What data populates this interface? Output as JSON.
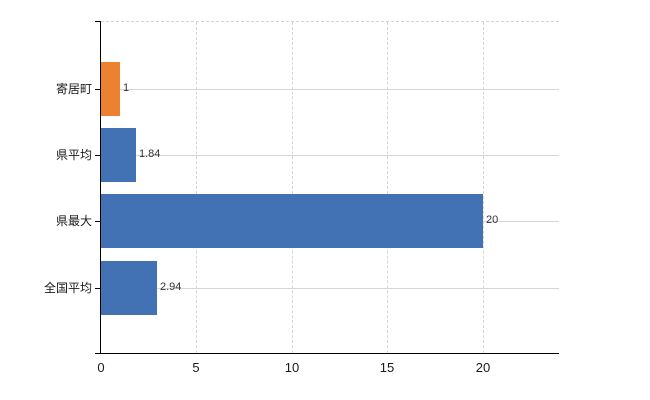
{
  "chart_data": {
    "type": "bar",
    "orientation": "horizontal",
    "title": "",
    "xlabel": "",
    "ylabel": "",
    "categories": [
      "寄居町",
      "県平均",
      "県最大",
      "全国平均"
    ],
    "values": [
      1,
      1.84,
      20,
      2.94
    ],
    "value_labels": [
      "1",
      "1.84",
      "20",
      "2.94"
    ],
    "bar_colors": [
      "#ED8132",
      "#4272B4",
      "#4272B4",
      "#4272B4"
    ],
    "x_tick_labels": [
      "0",
      "5",
      "10",
      "15",
      "20"
    ],
    "x_tick_values": [
      0,
      5,
      10,
      15,
      20
    ],
    "xlim": [
      0,
      24
    ],
    "legend": null,
    "grid": {
      "horizontal_style": "solid",
      "vertical_style": "dashed",
      "top_border_style": "dashed",
      "color": "#d3d8d0"
    },
    "colors": {
      "axis": "#000000",
      "category_text": "#1a1a1a",
      "tick_text": "#1a1a1a",
      "value_text": "#333333",
      "background": "#ffffff"
    }
  }
}
